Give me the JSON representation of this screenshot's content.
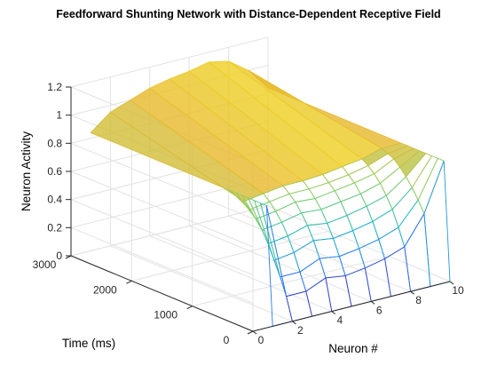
{
  "chart_data": {
    "type": "surface",
    "title": "Feedforward Shunting Network with Distance-Dependent Receptive Field",
    "xlabel": "Neuron #",
    "ylabel": "Time (ms)",
    "zlabel": "Neuron Activity",
    "x_ticks": [
      "0",
      "2",
      "4",
      "6",
      "8",
      "10"
    ],
    "y_ticks": [
      "0",
      "1000",
      "2000",
      "3000"
    ],
    "z_ticks": [
      "0",
      "0.2",
      "0.4",
      "0.6",
      "0.8",
      "1",
      "1.2"
    ],
    "xlim": [
      0,
      10
    ],
    "ylim": [
      0,
      3000
    ],
    "zlim": [
      0,
      1.2
    ],
    "grid": true,
    "colormap": [
      "#3E26A8",
      "#2F6FF6",
      "#16B7C7",
      "#7FCF6B",
      "#E8BA2F",
      "#F9FB15"
    ],
    "neurons": [
      1,
      2,
      3,
      4,
      5,
      6,
      7,
      8,
      9,
      10
    ],
    "time": [
      0,
      100,
      200,
      300,
      400,
      500,
      600,
      700,
      800,
      3000
    ],
    "activity": [
      [
        0.0,
        0.0,
        0.0,
        0.0,
        0.0,
        0.0,
        0.0,
        0.0,
        0.0,
        0.0
      ],
      [
        0.84,
        0.16,
        0.16,
        0.22,
        0.2,
        0.22,
        0.25,
        0.3,
        0.5,
        0.84
      ],
      [
        0.84,
        0.28,
        0.28,
        0.34,
        0.32,
        0.34,
        0.37,
        0.42,
        0.58,
        0.84
      ],
      [
        0.84,
        0.38,
        0.4,
        0.45,
        0.43,
        0.45,
        0.48,
        0.53,
        0.65,
        0.84
      ],
      [
        0.84,
        0.48,
        0.5,
        0.54,
        0.52,
        0.54,
        0.57,
        0.61,
        0.71,
        0.84
      ],
      [
        0.84,
        0.56,
        0.58,
        0.61,
        0.6,
        0.62,
        0.64,
        0.68,
        0.76,
        0.84
      ],
      [
        0.84,
        0.62,
        0.64,
        0.67,
        0.66,
        0.68,
        0.7,
        0.73,
        0.8,
        0.84
      ],
      [
        0.84,
        0.67,
        0.69,
        0.71,
        0.71,
        0.72,
        0.74,
        0.77,
        0.82,
        0.84
      ],
      [
        0.84,
        0.71,
        0.73,
        0.75,
        0.75,
        0.76,
        0.78,
        0.8,
        0.84,
        0.84
      ],
      [
        0.84,
        0.95,
        1.0,
        1.05,
        1.08,
        1.1,
        1.13,
        1.1,
        1.0,
        0.84
      ]
    ]
  }
}
